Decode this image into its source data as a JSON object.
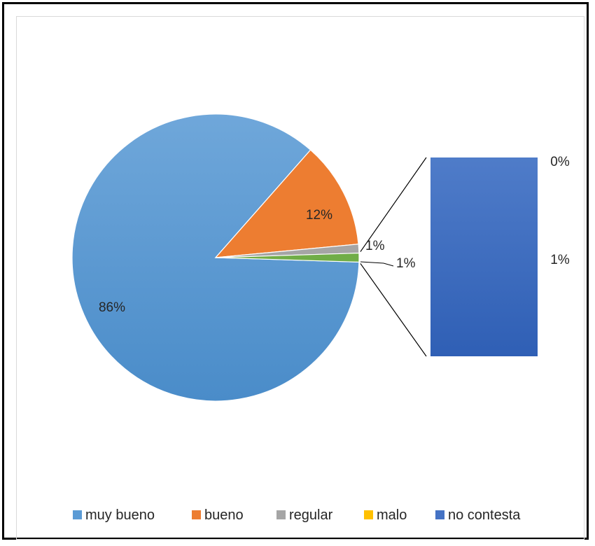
{
  "chart_data": {
    "type": "pie",
    "subtype": "bar-of-pie",
    "title": "",
    "categories": [
      "muy bueno",
      "bueno",
      "regular",
      "malo",
      "no contesta"
    ],
    "values": [
      86,
      12,
      1,
      0,
      1
    ],
    "labels": [
      "86%",
      "12%",
      "1%",
      "0%",
      "1%"
    ],
    "secondary_bar_categories": [
      "malo",
      "no contesta"
    ],
    "colors": [
      "#5b9bd5",
      "#ed7d31",
      "#a5a5a5",
      "#ffc000",
      "#4472c4"
    ],
    "aggregate_slice": {
      "label": "1%",
      "color": "#70ad47"
    },
    "legend_position": "bottom"
  }
}
